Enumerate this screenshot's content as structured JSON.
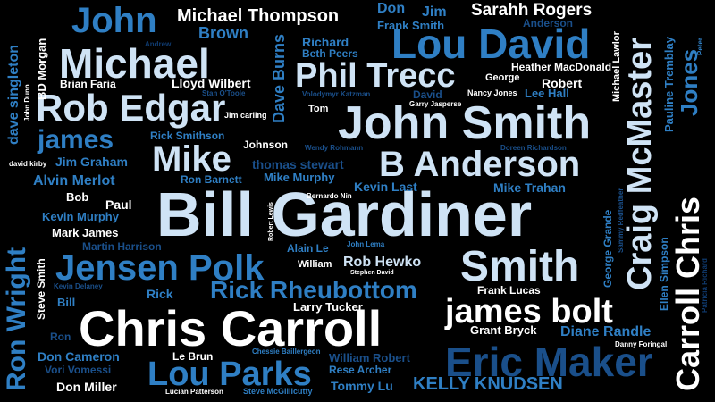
{
  "colors": {
    "background": "#000000",
    "white": "#ffffff",
    "light": "#cfe3f5",
    "mid": "#2f7fc4",
    "dark": "#1a4f8a",
    "deep": "#0f3a6e"
  },
  "words": [
    {
      "text": "Bill Gardiner",
      "color": "light"
    },
    {
      "text": "John Smith",
      "color": "light"
    },
    {
      "text": "Chris Carroll",
      "color": "white"
    },
    {
      "text": "Lou David",
      "color": "mid"
    },
    {
      "text": "Michael",
      "color": "light"
    },
    {
      "text": "John",
      "color": "mid"
    },
    {
      "text": "Rob Edgar",
      "color": "light"
    },
    {
      "text": "Smith",
      "color": "light"
    },
    {
      "text": "Jensen Polk",
      "color": "mid"
    },
    {
      "text": "Eric Maker",
      "color": "dark"
    },
    {
      "text": "Phil Trecc",
      "color": "light"
    },
    {
      "text": "B Anderson",
      "color": "light"
    },
    {
      "text": "Mike",
      "color": "light"
    },
    {
      "text": "james bolt",
      "color": "white"
    },
    {
      "text": "Rick Rheubottom",
      "color": "mid"
    },
    {
      "text": "Lou Parks",
      "color": "mid"
    },
    {
      "text": "james",
      "color": "mid"
    },
    {
      "text": "Michael Thompson",
      "color": "white"
    },
    {
      "text": "Sarahh Rogers",
      "color": "white"
    },
    {
      "text": "Brown",
      "color": "mid"
    },
    {
      "text": "Don",
      "color": "mid"
    },
    {
      "text": "Jim",
      "color": "mid"
    },
    {
      "text": "Frank Smith",
      "color": "mid"
    },
    {
      "text": "Anderson",
      "color": "dark"
    },
    {
      "text": "Richard",
      "color": "mid"
    },
    {
      "text": "Beth Peers",
      "color": "mid"
    },
    {
      "text": "Andrew",
      "color": "deep"
    },
    {
      "text": "Lloyd Wilbert",
      "color": "white"
    },
    {
      "text": "Brian Faria",
      "color": "white"
    },
    {
      "text": "Stan O'Toole",
      "color": "dark"
    },
    {
      "text": "Heather MacDonald",
      "color": "white"
    },
    {
      "text": "George",
      "color": "white"
    },
    {
      "text": "Robert",
      "color": "white"
    },
    {
      "text": "Volodymyr Katzman",
      "color": "dark"
    },
    {
      "text": "David",
      "color": "dark"
    },
    {
      "text": "Nancy Jones",
      "color": "white"
    },
    {
      "text": "Lee Hall",
      "color": "mid"
    },
    {
      "text": "Garry Jasperse",
      "color": "white"
    },
    {
      "text": "Tom",
      "color": "white"
    },
    {
      "text": "Jim carling",
      "color": "white"
    },
    {
      "text": "Rick Smithson",
      "color": "mid"
    },
    {
      "text": "Johnson",
      "color": "white"
    },
    {
      "text": "Wendy Rohmann",
      "color": "dark"
    },
    {
      "text": "Doreen Richardson",
      "color": "dark"
    },
    {
      "text": "david kirby",
      "color": "white"
    },
    {
      "text": "Jim Graham",
      "color": "mid"
    },
    {
      "text": "thomas stewart",
      "color": "dark"
    },
    {
      "text": "Alvin Merlot",
      "color": "mid"
    },
    {
      "text": "Ron Barnett",
      "color": "mid"
    },
    {
      "text": "Mike Murphy",
      "color": "mid"
    },
    {
      "text": "Kevin Last",
      "color": "mid"
    },
    {
      "text": "Mike Trahan",
      "color": "mid"
    },
    {
      "text": "Bob",
      "color": "white"
    },
    {
      "text": "Bernardo Nin",
      "color": "white"
    },
    {
      "text": "Paul",
      "color": "white"
    },
    {
      "text": "Kevin Murphy",
      "color": "mid"
    },
    {
      "text": "Mark James",
      "color": "white"
    },
    {
      "text": "Martin Harrison",
      "color": "dark"
    },
    {
      "text": "Alain Le",
      "color": "mid"
    },
    {
      "text": "John Lema",
      "color": "mid"
    },
    {
      "text": "William",
      "color": "white"
    },
    {
      "text": "Rob Hewko",
      "color": "light"
    },
    {
      "text": "Stephen David",
      "color": "white"
    },
    {
      "text": "Kevin Delaney",
      "color": "dark"
    },
    {
      "text": "Rick",
      "color": "mid"
    },
    {
      "text": "Frank Lucas",
      "color": "white"
    },
    {
      "text": "Bill",
      "color": "mid"
    },
    {
      "text": "Larry Tucker",
      "color": "white"
    },
    {
      "text": "Ron",
      "color": "dark"
    },
    {
      "text": "Grant Bryck",
      "color": "white"
    },
    {
      "text": "Diane Randle",
      "color": "mid"
    },
    {
      "text": "Danny Foringal",
      "color": "white"
    },
    {
      "text": "Don Cameron",
      "color": "mid"
    },
    {
      "text": "Le Brun",
      "color": "white"
    },
    {
      "text": "Chessie Baillergeon",
      "color": "mid"
    },
    {
      "text": "William Robert",
      "color": "dark"
    },
    {
      "text": "Vori Vomessi",
      "color": "dark"
    },
    {
      "text": "Rese Archer",
      "color": "mid"
    },
    {
      "text": "Don Miller",
      "color": "white"
    },
    {
      "text": "Lucian Patterson",
      "color": "white"
    },
    {
      "text": "Steve McGillicutty",
      "color": "mid"
    },
    {
      "text": "Tommy Lu",
      "color": "mid"
    },
    {
      "text": "KELLY KNUDSEN",
      "color": "mid"
    },
    {
      "text": "dave singleton",
      "color": "mid"
    },
    {
      "text": "BD Morgan",
      "color": "white"
    },
    {
      "text": "John Dunn",
      "color": "white"
    },
    {
      "text": "Ron Wright",
      "color": "mid"
    },
    {
      "text": "Steve Smith",
      "color": "white"
    },
    {
      "text": "Dave Burns",
      "color": "mid"
    },
    {
      "text": "Robert Lewis",
      "color": "white"
    },
    {
      "text": "Craig McMaster",
      "color": "light"
    },
    {
      "text": "Michael Lawlor",
      "color": "white"
    },
    {
      "text": "Pauline Tremblay",
      "color": "mid"
    },
    {
      "text": "Jones",
      "color": "mid"
    },
    {
      "text": "Peter",
      "color": "mid"
    },
    {
      "text": "Carroll Chris",
      "color": "white"
    },
    {
      "text": "Sammy Redfeather",
      "color": "dark"
    },
    {
      "text": "George Grande",
      "color": "mid"
    },
    {
      "text": "Ellen Simpson",
      "color": "mid"
    },
    {
      "text": "Patricia Richard",
      "color": "deep"
    }
  ]
}
